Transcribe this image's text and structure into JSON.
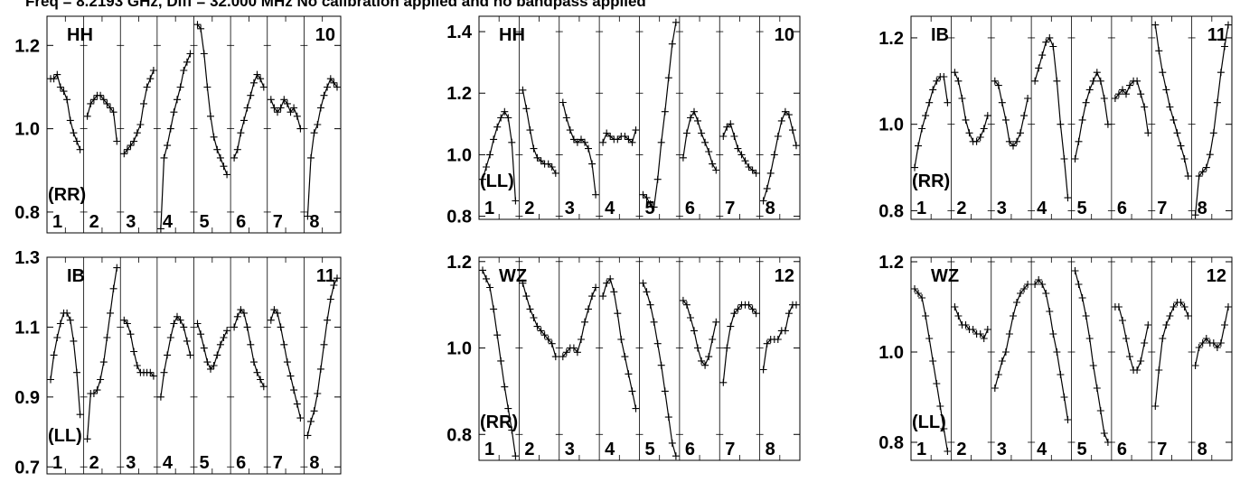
{
  "title": "Freq = 8.2193 GHz, Diff = 32.000 MHz  No calibration applied and no bandpass applied",
  "colors": {
    "ink": "#000000",
    "background": "#ffffff"
  },
  "chart_data": [
    {
      "type": "line",
      "baseline": "HH",
      "number": "10",
      "polarization": "(RR)",
      "ylim": [
        0.75,
        1.27
      ],
      "yticks": [
        "0.8",
        "1.0",
        "1.2"
      ],
      "subbands": [
        "1",
        "2",
        "3",
        "4",
        "5",
        "6",
        "7",
        "8"
      ],
      "series": [
        {
          "values": [
            [
              1.12,
              1.12,
              1.13,
              1.1,
              1.09,
              1.07,
              1.02,
              0.99,
              0.97,
              0.95
            ],
            [
              1.03,
              1.06,
              1.07,
              1.08,
              1.08,
              1.07,
              1.06,
              1.05,
              1.04,
              0.97
            ],
            [
              0.94,
              0.95,
              0.96,
              0.97,
              0.99,
              1.01,
              1.06,
              1.1,
              1.12,
              1.14
            ],
            [
              0.76,
              0.93,
              0.96,
              1.0,
              1.04,
              1.07,
              1.1,
              1.14,
              1.16,
              1.18
            ],
            [
              1.25,
              1.24,
              1.18,
              1.1,
              1.03,
              0.98,
              0.95,
              0.93,
              0.91,
              0.89
            ],
            [
              0.93,
              0.95,
              0.99,
              1.02,
              1.05,
              1.08,
              1.11,
              1.13,
              1.12,
              1.1
            ],
            [
              1.07,
              1.05,
              1.04,
              1.05,
              1.07,
              1.06,
              1.04,
              1.05,
              1.03,
              1.0
            ],
            [
              0.79,
              0.93,
              0.99,
              1.01,
              1.05,
              1.08,
              1.1,
              1.12,
              1.11,
              1.1
            ]
          ]
        }
      ]
    },
    {
      "type": "line",
      "baseline": "HH",
      "number": "10",
      "polarization": "(LL)",
      "ylim": [
        0.79,
        1.45
      ],
      "yticks": [
        "0.8",
        "1.0",
        "1.2",
        "1.4"
      ],
      "subbands": [
        "1",
        "2",
        "3",
        "4",
        "5",
        "6",
        "7",
        "8"
      ],
      "series": [
        {
          "values": [
            [
              0.92,
              0.96,
              1.0,
              1.05,
              1.09,
              1.12,
              1.14,
              1.12,
              1.04,
              0.85
            ],
            [
              1.21,
              1.15,
              1.08,
              1.02,
              0.99,
              0.98,
              0.97,
              0.97,
              0.96,
              0.94
            ],
            [
              1.17,
              1.12,
              1.08,
              1.05,
              1.04,
              1.05,
              1.04,
              1.02,
              0.97,
              0.87
            ],
            [
              1.04,
              1.07,
              1.06,
              1.05,
              1.05,
              1.06,
              1.06,
              1.05,
              1.04,
              1.08
            ],
            [
              0.87,
              0.86,
              0.84,
              0.83,
              0.92,
              1.04,
              1.14,
              1.25,
              1.36,
              1.43
            ],
            [
              0.99,
              1.07,
              1.12,
              1.14,
              1.11,
              1.07,
              1.04,
              1.01,
              0.97,
              0.95
            ],
            [
              1.06,
              1.09,
              1.1,
              1.06,
              1.02,
              1.0,
              0.98,
              0.96,
              0.95,
              0.94
            ],
            [
              0.85,
              0.89,
              0.94,
              1.0,
              1.06,
              1.11,
              1.14,
              1.13,
              1.08,
              1.03
            ]
          ]
        }
      ]
    },
    {
      "type": "line",
      "baseline": "IB",
      "number": "11",
      "polarization": "(RR)",
      "ylim": [
        0.78,
        1.25
      ],
      "yticks": [
        "0.8",
        "1.0",
        "1.2"
      ],
      "subbands": [
        "1",
        "2",
        "3",
        "4",
        "5",
        "6",
        "7",
        "8"
      ],
      "series": [
        {
          "values": [
            [
              0.9,
              0.95,
              0.99,
              1.02,
              1.05,
              1.08,
              1.1,
              1.11,
              1.11,
              1.05
            ],
            [
              1.12,
              1.1,
              1.06,
              1.01,
              0.98,
              0.96,
              0.96,
              0.97,
              0.99,
              1.02
            ],
            [
              1.1,
              1.09,
              1.05,
              1.01,
              0.96,
              0.95,
              0.96,
              0.98,
              1.02,
              1.06
            ],
            [
              1.1,
              1.13,
              1.16,
              1.19,
              1.2,
              1.18,
              1.1,
              1.0,
              0.92,
              0.83
            ],
            [
              0.92,
              0.96,
              1.01,
              1.05,
              1.08,
              1.1,
              1.12,
              1.1,
              1.06,
              1.0
            ],
            [
              1.06,
              1.07,
              1.08,
              1.07,
              1.09,
              1.1,
              1.1,
              1.07,
              1.04,
              0.98
            ],
            [
              1.23,
              1.17,
              1.12,
              1.08,
              1.04,
              1.01,
              0.98,
              0.95,
              0.92,
              0.88
            ],
            [
              0.79,
              0.88,
              0.89,
              0.9,
              0.93,
              0.98,
              1.05,
              1.12,
              1.18,
              1.23
            ]
          ]
        }
      ]
    },
    {
      "type": "line",
      "baseline": "IB",
      "number": "11",
      "polarization": "(LL)",
      "ylim": [
        0.68,
        1.3
      ],
      "yticks": [
        "0.7",
        "0.9",
        "1.1",
        "1.3"
      ],
      "subbands": [
        "1",
        "2",
        "3",
        "4",
        "5",
        "6",
        "7",
        "8"
      ],
      "series": [
        {
          "values": [
            [
              0.95,
              1.02,
              1.07,
              1.11,
              1.14,
              1.14,
              1.12,
              1.06,
              0.97,
              0.85
            ],
            [
              0.78,
              0.91,
              0.91,
              0.92,
              0.95,
              1.0,
              1.07,
              1.14,
              1.21,
              1.27
            ],
            [
              1.12,
              1.11,
              1.08,
              1.03,
              0.99,
              0.97,
              0.97,
              0.97,
              0.97,
              0.96
            ],
            [
              0.9,
              0.97,
              1.02,
              1.07,
              1.11,
              1.13,
              1.12,
              1.1,
              1.06,
              1.02
            ],
            [
              1.11,
              1.08,
              1.04,
              1.0,
              0.98,
              0.99,
              1.02,
              1.05,
              1.07,
              1.09
            ],
            [
              1.1,
              1.13,
              1.15,
              1.14,
              1.1,
              1.05,
              1.0,
              0.97,
              0.95,
              0.93
            ],
            [
              1.12,
              1.15,
              1.14,
              1.1,
              1.05,
              1.0,
              0.96,
              0.92,
              0.88,
              0.84
            ],
            [
              0.79,
              0.83,
              0.86,
              0.91,
              0.98,
              1.05,
              1.12,
              1.18,
              1.22,
              1.24
            ]
          ]
        }
      ]
    },
    {
      "type": "line",
      "baseline": "WZ",
      "number": "12",
      "polarization": "(RR)",
      "ylim": [
        0.74,
        1.21
      ],
      "yticks": [
        "0.8",
        "1.0",
        "1.2"
      ],
      "subbands": [
        "1",
        "2",
        "3",
        "4",
        "5",
        "6",
        "7",
        "8"
      ],
      "series": [
        {
          "values": [
            [
              1.18,
              1.16,
              1.14,
              1.09,
              1.03,
              0.97,
              0.91,
              0.86,
              0.81,
              0.75
            ],
            [
              1.15,
              1.12,
              1.09,
              1.07,
              1.05,
              1.04,
              1.03,
              1.02,
              1.01,
              0.98
            ],
            [
              0.98,
              0.99,
              1.0,
              1.0,
              0.99,
              1.02,
              1.06,
              1.09,
              1.12,
              1.14
            ],
            [
              1.12,
              1.15,
              1.16,
              1.13,
              1.08,
              1.02,
              0.98,
              0.94,
              0.9,
              0.86
            ],
            [
              1.15,
              1.13,
              1.1,
              1.06,
              1.01,
              0.96,
              0.9,
              0.84,
              0.78,
              0.75
            ],
            [
              1.11,
              1.1,
              1.07,
              1.04,
              1.0,
              0.97,
              0.96,
              0.98,
              1.02,
              1.06
            ],
            [
              0.92,
              1.0,
              1.05,
              1.08,
              1.09,
              1.1,
              1.1,
              1.1,
              1.09,
              1.08
            ],
            [
              0.95,
              1.01,
              1.02,
              1.02,
              1.02,
              1.04,
              1.04,
              1.08,
              1.1,
              1.1
            ]
          ]
        }
      ]
    },
    {
      "type": "line",
      "baseline": "WZ",
      "number": "12",
      "polarization": "(LL)",
      "ylim": [
        0.76,
        1.21
      ],
      "yticks": [
        "0.8",
        "1.0",
        "1.2"
      ],
      "subbands": [
        "1",
        "2",
        "3",
        "4",
        "5",
        "6",
        "7",
        "8"
      ],
      "series": [
        {
          "values": [
            [
              1.14,
              1.13,
              1.12,
              1.08,
              1.03,
              0.98,
              0.93,
              0.88,
              0.83,
              0.78
            ],
            [
              1.1,
              1.08,
              1.06,
              1.06,
              1.05,
              1.05,
              1.04,
              1.04,
              1.03,
              1.05
            ],
            [
              0.92,
              0.95,
              0.98,
              1.0,
              1.04,
              1.08,
              1.11,
              1.13,
              1.14,
              1.15
            ],
            [
              1.15,
              1.16,
              1.15,
              1.13,
              1.09,
              1.04,
              1.0,
              0.95,
              0.9,
              0.85
            ],
            [
              1.18,
              1.15,
              1.12,
              1.08,
              1.03,
              0.97,
              0.92,
              0.87,
              0.82,
              0.8
            ],
            [
              1.1,
              1.1,
              1.07,
              1.03,
              0.99,
              0.96,
              0.96,
              0.98,
              1.02,
              1.06
            ],
            [
              0.88,
              0.96,
              1.03,
              1.06,
              1.08,
              1.1,
              1.11,
              1.11,
              1.1,
              1.08
            ],
            [
              0.97,
              1.01,
              1.02,
              1.03,
              1.02,
              1.02,
              1.01,
              1.02,
              1.06,
              1.1
            ]
          ]
        }
      ]
    }
  ]
}
